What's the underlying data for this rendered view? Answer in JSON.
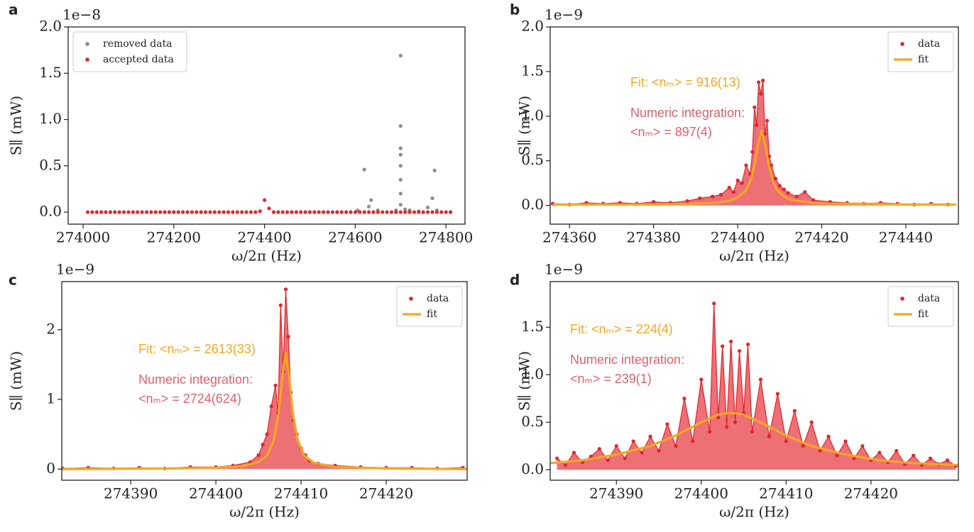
{
  "chart_data": [
    {
      "type": "scatter",
      "panel_label": "a",
      "offset_text": "1e−8",
      "xlabel": "ω/2π (Hz)",
      "ylabel": "S∥ (mW)",
      "xlim": [
        273967,
        274842
      ],
      "ylim": [
        -0.13,
        2.0
      ],
      "xticks": [
        274000,
        274200,
        274400,
        274600,
        274800
      ],
      "yticks": [
        {
          "value": 0,
          "label": "0.0"
        },
        0.5,
        {
          "value": 1,
          "label": "1.0"
        },
        1.5,
        {
          "value": 2,
          "label": "2.0"
        }
      ],
      "legend": "upper left",
      "series": [
        {
          "name": "removed data",
          "color": "#8c8c8c",
          "x": [
            274605,
            274620,
            274630,
            274635,
            274650,
            274690,
            274700,
            274700,
            274700,
            274700,
            274700,
            274700,
            274700,
            274700,
            274710,
            274720,
            274740,
            274760,
            274770,
            274775,
            274780
          ],
          "values": [
            0.02,
            0.46,
            0.06,
            0.13,
            0.02,
            0.02,
            1.69,
            0.93,
            0.69,
            0.62,
            0.5,
            0.35,
            0.2,
            0.08,
            0.03,
            0.02,
            0.01,
            0.05,
            0.15,
            0.45,
            0.02
          ]
        },
        {
          "name": "accepted data",
          "color": "#e3242b",
          "x": [
            274010,
            274020,
            274030,
            274040,
            274050,
            274060,
            274070,
            274080,
            274090,
            274100,
            274110,
            274120,
            274130,
            274140,
            274150,
            274160,
            274170,
            274180,
            274190,
            274200,
            274210,
            274220,
            274230,
            274240,
            274250,
            274260,
            274270,
            274280,
            274290,
            274300,
            274310,
            274320,
            274330,
            274340,
            274350,
            274360,
            274370,
            274380,
            274390,
            274400,
            274410,
            274420,
            274430,
            274440,
            274450,
            274460,
            274470,
            274480,
            274490,
            274500,
            274510,
            274520,
            274530,
            274540,
            274550,
            274560,
            274570,
            274580,
            274590,
            274600,
            274610,
            274620,
            274630,
            274640,
            274650,
            274660,
            274670,
            274680,
            274690,
            274700,
            274710,
            274720,
            274730,
            274740,
            274750,
            274760,
            274770,
            274780,
            274790,
            274800,
            274810
          ],
          "values": [
            0,
            0,
            0,
            0,
            0,
            0,
            0,
            0,
            0,
            0,
            0,
            0,
            0,
            0,
            0,
            0,
            0,
            0,
            0,
            0,
            0,
            0,
            0,
            0,
            0,
            0,
            0,
            0,
            0,
            0,
            0,
            0,
            0,
            0,
            0,
            0,
            0,
            0,
            0.01,
            0.13,
            0.04,
            0,
            0,
            0,
            0,
            0,
            0,
            0,
            0,
            0,
            0,
            0,
            0,
            0,
            0,
            0,
            0,
            0,
            0,
            0,
            0,
            0,
            0,
            0,
            0,
            0,
            0,
            0,
            0,
            0,
            0,
            0,
            0,
            0,
            0,
            0,
            0,
            0,
            0,
            0,
            0
          ]
        }
      ]
    },
    {
      "type": "line",
      "panel_label": "b",
      "offset_text": "1e−9",
      "xlabel": "ω/2π (Hz)",
      "ylabel": "S∥ (mW)",
      "xlim": [
        274355.4,
        274452.5
      ],
      "ylim": [
        -0.21,
        2.0
      ],
      "xticks": [
        274360,
        274380,
        274400,
        274420,
        274440
      ],
      "yticks": [
        {
          "value": 0,
          "label": "0.0"
        },
        0.5,
        {
          "value": 1,
          "label": "1.0"
        },
        1.5,
        {
          "value": 2,
          "label": "2.0"
        }
      ],
      "legend": "upper right",
      "annotations": [
        {
          "text": "Fit: <nₘ> = 916(13)",
          "color": "#f5a623"
        },
        {
          "text": "Numeric integration:",
          "color": "#e0606a"
        },
        {
          "text": "<nₘ> = 897(4)",
          "color": "#e0606a"
        }
      ],
      "series": [
        {
          "name": "data",
          "color": "#e3242b",
          "marker": true,
          "fill": true,
          "x": [
            274356,
            274360,
            274364,
            274368,
            274372,
            274376,
            274380,
            274384,
            274388,
            274391,
            274394,
            274396,
            274398,
            274399,
            274400,
            274401,
            274402,
            274403,
            274403.5,
            274404,
            274404.5,
            274405,
            274405.5,
            274406,
            274406.5,
            274407,
            274407.5,
            274408,
            274409,
            274410,
            274411,
            274412,
            274414,
            274416,
            274418,
            274422,
            274426,
            274430,
            274434,
            274438,
            274442,
            274446,
            274450
          ],
          "values": [
            0.02,
            0.01,
            0.03,
            0.02,
            0.03,
            0.02,
            0.04,
            0.03,
            0.05,
            0.08,
            0.1,
            0.12,
            0.2,
            0.15,
            0.28,
            0.25,
            0.45,
            0.35,
            0.6,
            1.1,
            0.9,
            1.38,
            1.25,
            1.4,
            0.8,
            0.95,
            0.55,
            0.45,
            0.3,
            0.22,
            0.18,
            0.14,
            0.1,
            0.15,
            0.06,
            0.04,
            0.03,
            0.02,
            0.03,
            0.02,
            0.01,
            0.02,
            0.01
          ]
        },
        {
          "name": "fit",
          "color": "#f5a623",
          "marker": false,
          "x": [
            274356,
            274370,
            274380,
            274390,
            274395,
            274398,
            274400,
            274402,
            274403,
            274404,
            274404.8,
            274405.7,
            274406.6,
            274407.4,
            274408.4,
            274409.4,
            274411,
            274413,
            274416,
            274420,
            274430,
            274440,
            274452
          ],
          "values": [
            0.01,
            0.01,
            0.01,
            0.02,
            0.03,
            0.05,
            0.09,
            0.17,
            0.27,
            0.45,
            0.67,
            0.84,
            0.67,
            0.45,
            0.27,
            0.17,
            0.1,
            0.06,
            0.04,
            0.02,
            0.02,
            0.01,
            0.01
          ]
        }
      ]
    },
    {
      "type": "line",
      "panel_label": "c",
      "offset_text": "1e−9",
      "xlabel": "ω/2π (Hz)",
      "ylabel": "S∥ (mW)",
      "xlim": [
        274381.9,
        274429.5
      ],
      "ylim": [
        -0.16,
        2.69
      ],
      "xticks": [
        274390,
        274400,
        274410,
        274420
      ],
      "yticks": [
        0,
        1,
        2
      ],
      "legend": "upper right",
      "annotations": [
        {
          "text": "Fit: <nₘ> = 2613(33)",
          "color": "#f5a623"
        },
        {
          "text": "Numeric integration:",
          "color": "#e0606a"
        },
        {
          "text": "<nₘ> = 2724(624)",
          "color": "#e0606a"
        }
      ],
      "series": [
        {
          "name": "data",
          "color": "#e3242b",
          "marker": true,
          "fill": true,
          "x": [
            274382,
            274385,
            274388,
            274391,
            274394,
            274397,
            274400,
            274402,
            274404,
            274405,
            274405.5,
            274406,
            274406.5,
            274407,
            274407.3,
            274407.6,
            274407.9,
            274408.2,
            274408.5,
            274408.8,
            274409.1,
            274409.5,
            274410,
            274410.5,
            274411,
            274412,
            274414,
            274417,
            274420,
            274423,
            274426,
            274429
          ],
          "values": [
            0.01,
            0.02,
            0.01,
            0.02,
            0.01,
            0.03,
            0.03,
            0.05,
            0.1,
            0.2,
            0.35,
            0.5,
            0.9,
            1.2,
            0.8,
            2.35,
            1.4,
            2.58,
            1.9,
            1.1,
            0.7,
            0.5,
            0.3,
            0.2,
            0.12,
            0.08,
            0.05,
            0.03,
            0.02,
            0.02,
            0.01,
            0.02
          ]
        },
        {
          "name": "fit",
          "color": "#f5a623",
          "marker": false,
          "x": [
            274382,
            274395,
            274400,
            274403,
            274405,
            274406,
            274406.8,
            274407.4,
            274407.8,
            274408.2,
            274408.6,
            274409,
            274409.6,
            274410.4,
            274411.5,
            274414,
            274420,
            274429.5
          ],
          "values": [
            0,
            0.01,
            0.02,
            0.04,
            0.1,
            0.19,
            0.41,
            0.83,
            1.33,
            1.67,
            1.33,
            0.83,
            0.41,
            0.19,
            0.09,
            0.03,
            0.01,
            0
          ]
        }
      ]
    },
    {
      "type": "line",
      "panel_label": "d",
      "offset_text": "1e−9",
      "xlabel": "ω/2π (Hz)",
      "ylabel": "S∥ (mW)",
      "xlim": [
        274382.2,
        274430.3
      ],
      "ylim": [
        -0.11,
        1.98
      ],
      "xticks": [
        274390,
        274400,
        274410,
        274420
      ],
      "yticks": [
        {
          "value": 0,
          "label": "0.0"
        },
        0.5,
        {
          "value": 1,
          "label": "1.0"
        },
        1.5
      ],
      "legend": "upper right",
      "annotations": [
        {
          "text": "Fit: <nₘ> = 224(4)",
          "color": "#f5a623"
        },
        {
          "text": "Numeric integration:",
          "color": "#e0606a"
        },
        {
          "text": "<nₘ> = 239(1)",
          "color": "#e0606a"
        }
      ],
      "series": [
        {
          "name": "data",
          "color": "#e3242b",
          "marker": true,
          "fill": true,
          "x": [
            274383,
            274384,
            274385,
            274386,
            274387,
            274388,
            274389,
            274390,
            274391,
            274392,
            274393,
            274394,
            274395,
            274396,
            274397,
            274398,
            274399,
            274400,
            274401,
            274401.5,
            274402,
            274402.5,
            274403,
            274403.5,
            274404,
            274404.5,
            274405,
            274405.5,
            274406,
            274407,
            274408,
            274409,
            274410,
            274411,
            274412,
            274413,
            274414,
            274415,
            274416,
            274417,
            274418,
            274419,
            274420,
            274421,
            274422,
            274423,
            274424,
            274425,
            274426,
            274427,
            274428,
            274429,
            274430
          ],
          "values": [
            0.12,
            0.05,
            0.18,
            0.08,
            0.14,
            0.22,
            0.1,
            0.25,
            0.12,
            0.3,
            0.18,
            0.35,
            0.2,
            0.48,
            0.25,
            0.75,
            0.3,
            0.95,
            0.4,
            1.75,
            0.55,
            1.3,
            0.45,
            1.35,
            0.5,
            1.25,
            0.6,
            1.32,
            0.4,
            0.95,
            0.35,
            0.8,
            0.3,
            0.62,
            0.25,
            0.5,
            0.2,
            0.35,
            0.15,
            0.3,
            0.12,
            0.25,
            0.1,
            0.18,
            0.08,
            0.2,
            0.06,
            0.15,
            0.05,
            0.12,
            0.06,
            0.1,
            0.04
          ]
        },
        {
          "name": "fit",
          "color": "#f5a623",
          "marker": false,
          "x": [
            274382.2,
            274386,
            274390,
            274394,
            274397,
            274400,
            274402,
            274403.5,
            274405,
            274407,
            274410,
            274413,
            274417,
            274421,
            274425,
            274430.3
          ],
          "values": [
            0.07,
            0.1,
            0.16,
            0.25,
            0.36,
            0.5,
            0.58,
            0.6,
            0.58,
            0.5,
            0.36,
            0.25,
            0.16,
            0.1,
            0.07,
            0.05
          ]
        }
      ]
    }
  ]
}
